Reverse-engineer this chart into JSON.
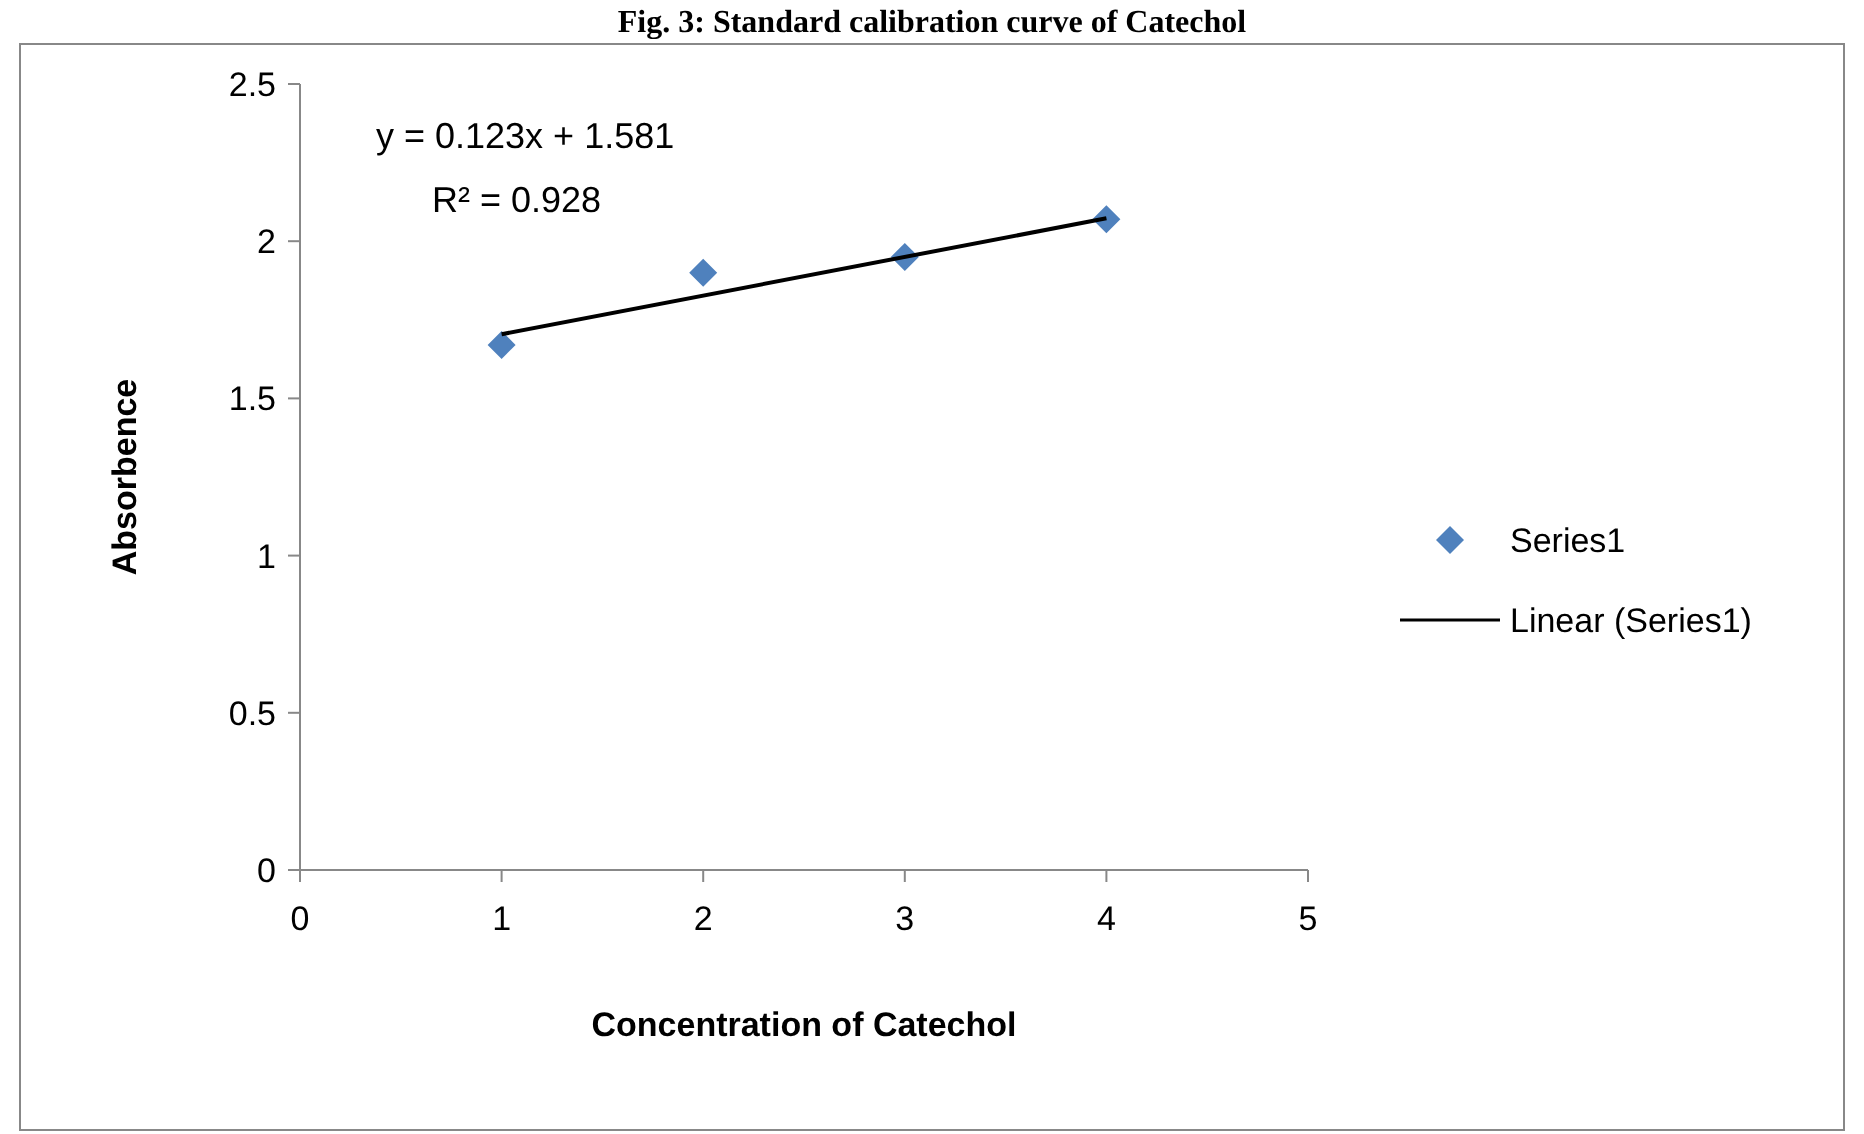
{
  "chart_data": {
    "type": "scatter",
    "title": "Fig. 3: Standard calibration curve of Catechol",
    "xlabel": "Concentration of Catechol",
    "ylabel": "Absorbence",
    "xlim": [
      0,
      5
    ],
    "xticks": [
      0,
      1,
      2,
      3,
      4,
      5
    ],
    "ylim": [
      0,
      2.5
    ],
    "yticks": [
      0,
      0.5,
      1,
      1.5,
      2,
      2.5
    ],
    "series": [
      {
        "name": "Series1",
        "color": "#4f81bd",
        "marker": "diamond",
        "x": [
          1,
          2,
          3,
          4
        ],
        "values": [
          1.67,
          1.9,
          1.95,
          2.07
        ]
      },
      {
        "name": "Linear (Series1)",
        "type": "line",
        "color": "#000000",
        "marker": "none",
        "line_style": "solid",
        "x": [
          1,
          4
        ],
        "values": [
          1.704,
          2.073
        ]
      }
    ],
    "annotations": [
      "y = 0.123x + 1.581",
      "R² = 0.928"
    ],
    "grid": false,
    "legend": "right"
  }
}
